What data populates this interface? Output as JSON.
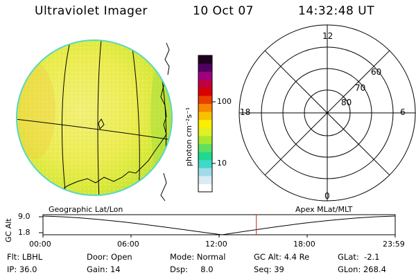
{
  "header": {
    "title": "Ultraviolet Imager",
    "date": "10 Oct 07",
    "time": "14:32:48 UT"
  },
  "colorbar": {
    "ticks": [
      "100",
      "10"
    ],
    "unit": "photon cm⁻²s⁻¹",
    "colors": [
      "#ffffff",
      "#d8ecf4",
      "#a0dce8",
      "#40d8c8",
      "#20d890",
      "#60e060",
      "#a8e830",
      "#e0f020",
      "#f8f000",
      "#f8c000",
      "#f88800",
      "#e84000",
      "#d80000",
      "#c00040",
      "#a00080",
      "#500060",
      "#200020"
    ]
  },
  "dial": {
    "mlt_labels": [
      "12",
      "18",
      "6",
      "0"
    ],
    "lat_labels": [
      "60",
      "70",
      "80"
    ]
  },
  "alt_plot": {
    "left_title": "Geographic Lat/Lon",
    "right_title": "Apex MLat/MLT",
    "axis_label": "GC Alt",
    "y_ticks": [
      "9.0",
      "1.8"
    ],
    "x_ticks": [
      "00:00",
      "06:00",
      "12:00",
      "18:00",
      "23:59"
    ],
    "current_time_fraction": 0.6058,
    "marker_color": "#cc2020"
  },
  "info": {
    "row1": {
      "flt": "Flt: LBHL",
      "door": "Door: Open",
      "mode": "Mode: Normal",
      "gcalt": "GC Alt: 4.4 Re",
      "glat": "GLat:  -2.1"
    },
    "row2": {
      "ip": "IP: 36.0",
      "gain": "Gain: 14",
      "dsp": "Dsp:     8.0",
      "seq": "Seq: 39",
      "glon": "GLon: 268.4"
    }
  }
}
